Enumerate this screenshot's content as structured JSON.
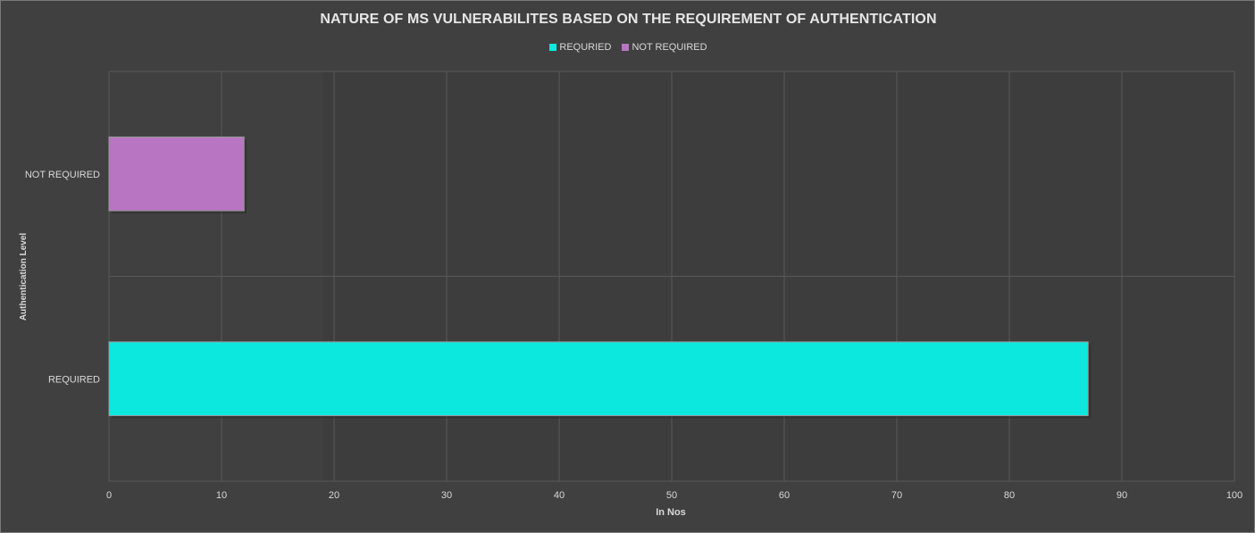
{
  "chart_data": {
    "type": "bar",
    "orientation": "horizontal",
    "title": "NATURE OF MS VULNERABILITES BASED ON THE REQUIREMENT OF AUTHENTICATION",
    "xlabel": "In Nos",
    "ylabel": "Authentication Level",
    "categories": [
      "REQUIRED",
      "NOT REQUIRED"
    ],
    "values": [
      87,
      12
    ],
    "colors": [
      "#0de8df",
      "#b875c2"
    ],
    "xlim": [
      0,
      100
    ],
    "xticks": [
      "0",
      "10",
      "20",
      "30",
      "40",
      "50",
      "60",
      "70",
      "80",
      "90",
      "100"
    ],
    "grid": true,
    "legend_position": "top-center",
    "legend": [
      {
        "label": "REQURIED",
        "color": "#0de8df"
      },
      {
        "label": "NOT REQUIRED",
        "color": "#b875c2"
      }
    ]
  }
}
